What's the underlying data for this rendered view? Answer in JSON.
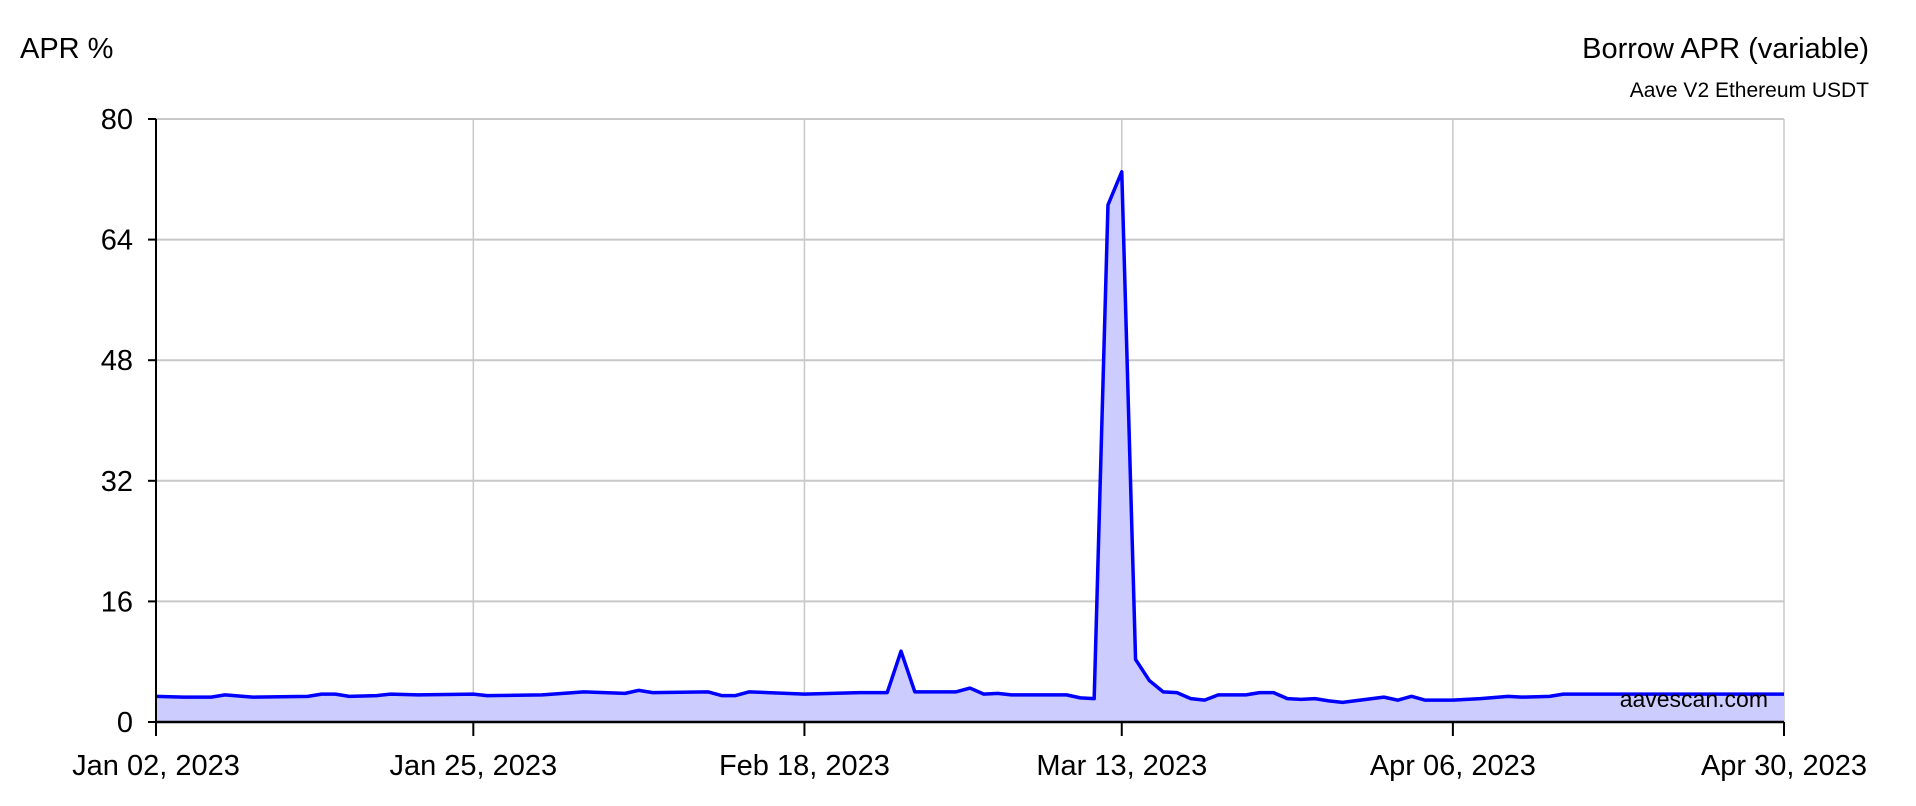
{
  "chart_data": {
    "type": "area",
    "title": "Borrow APR (variable)",
    "subtitle": "Aave V2 Ethereum USDT",
    "ylabel": "APR %",
    "xlabel": "",
    "watermark": "aavescan.com",
    "xlim": [
      "2023-01-02",
      "2023-04-30"
    ],
    "ylim": [
      0,
      80
    ],
    "grid": true,
    "x_ticks": [
      "2023-01-02",
      "2023-01-25",
      "2023-02-18",
      "2023-03-13",
      "2023-04-06",
      "2023-04-30"
    ],
    "x_tick_labels": [
      "Jan 02, 2023",
      "Jan 25, 2023",
      "Feb 18, 2023",
      "Mar 13, 2023",
      "Apr 06, 2023",
      "Apr 30, 2023"
    ],
    "y_ticks": [
      0,
      16,
      32,
      48,
      64,
      80
    ],
    "y_tick_labels": [
      "0",
      "16",
      "32",
      "48",
      "64",
      "80"
    ],
    "colors": {
      "line": "#0000ff",
      "fill": "#ccccff",
      "grid": "#c8c8c8"
    },
    "series": [
      {
        "x": [
          "2023-01-02",
          "2023-01-04",
          "2023-01-06",
          "2023-01-07",
          "2023-01-09",
          "2023-01-13",
          "2023-01-14",
          "2023-01-15",
          "2023-01-16",
          "2023-01-18",
          "2023-01-19",
          "2023-01-21",
          "2023-01-25",
          "2023-01-26",
          "2023-01-30",
          "2023-02-02",
          "2023-02-05",
          "2023-02-06",
          "2023-02-07",
          "2023-02-11",
          "2023-02-12",
          "2023-02-13",
          "2023-02-14",
          "2023-02-18",
          "2023-02-22",
          "2023-02-24",
          "2023-02-25",
          "2023-02-26",
          "2023-03-01",
          "2023-03-02",
          "2023-03-03",
          "2023-03-04",
          "2023-03-05",
          "2023-03-09",
          "2023-03-10",
          "2023-03-11",
          "2023-03-12",
          "2023-03-13",
          "2023-03-14",
          "2023-03-15",
          "2023-03-16",
          "2023-03-17",
          "2023-03-18",
          "2023-03-19",
          "2023-03-20",
          "2023-03-22",
          "2023-03-23",
          "2023-03-24",
          "2023-03-25",
          "2023-03-26",
          "2023-03-27",
          "2023-03-28",
          "2023-03-29",
          "2023-04-01",
          "2023-04-02",
          "2023-04-03",
          "2023-04-04",
          "2023-04-06",
          "2023-04-08",
          "2023-04-10",
          "2023-04-11",
          "2023-04-13",
          "2023-04-14",
          "2023-04-16",
          "2023-04-30"
        ],
        "y": [
          3.4,
          3.3,
          3.3,
          3.6,
          3.3,
          3.4,
          3.7,
          3.7,
          3.4,
          3.5,
          3.7,
          3.6,
          3.7,
          3.5,
          3.6,
          4.0,
          3.8,
          4.2,
          3.9,
          4.0,
          3.5,
          3.5,
          4.0,
          3.7,
          3.9,
          3.9,
          9.4,
          4.0,
          4.0,
          4.5,
          3.7,
          3.8,
          3.6,
          3.6,
          3.2,
          3.1,
          68.6,
          73.0,
          8.3,
          5.5,
          4.0,
          3.9,
          3.1,
          2.9,
          3.6,
          3.6,
          3.9,
          3.9,
          3.1,
          3.0,
          3.1,
          2.8,
          2.6,
          3.3,
          2.9,
          3.4,
          2.9,
          2.9,
          3.1,
          3.4,
          3.3,
          3.4,
          3.7,
          3.7,
          3.7
        ]
      }
    ]
  }
}
